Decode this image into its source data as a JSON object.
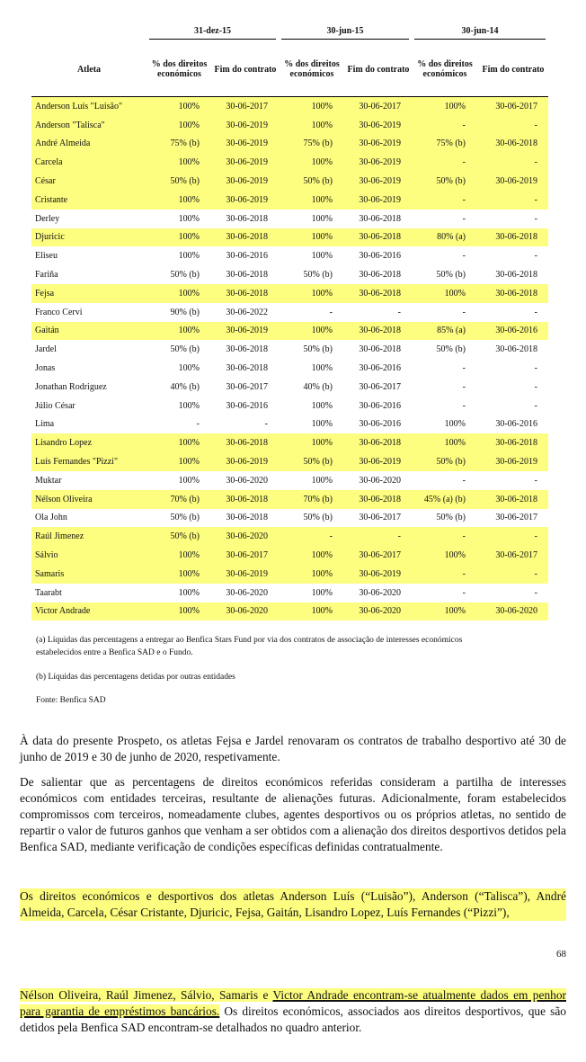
{
  "table": {
    "group_headers": [
      "31-dez-15",
      "30-jun-15",
      "30-jun-14"
    ],
    "athlete_header": "Atleta",
    "sub_headers": [
      "% dos direitos económicos",
      "Fim do contrato",
      "% dos direitos económicos",
      "Fim do contrato",
      "% dos direitos económicos",
      "Fim do contrato"
    ],
    "highlight_color": "#fdfd80",
    "rows": [
      {
        "cells": [
          "Anderson Luís \"Luisão\"",
          "100%",
          "30-06-2017",
          "100%",
          "30-06-2017",
          "100%",
          "30-06-2017"
        ],
        "highlighted": true
      },
      {
        "cells": [
          "Anderson \"Talisca\"",
          "100%",
          "30-06-2019",
          "100%",
          "30-06-2019",
          "-",
          "-"
        ],
        "highlighted": true
      },
      {
        "cells": [
          "André Almeida",
          "75% (b)",
          "30-06-2019",
          "75% (b)",
          "30-06-2019",
          "75% (b)",
          "30-06-2018"
        ],
        "highlighted": true
      },
      {
        "cells": [
          "Carcela",
          "100%",
          "30-06-2019",
          "100%",
          "30-06-2019",
          "-",
          "-"
        ],
        "highlighted": true
      },
      {
        "cells": [
          "César",
          "50% (b)",
          "30-06-2019",
          "50% (b)",
          "30-06-2019",
          "50% (b)",
          "30-06-2019"
        ],
        "highlighted": true
      },
      {
        "cells": [
          "Cristante",
          "100%",
          "30-06-2019",
          "100%",
          "30-06-2019",
          "-",
          "-"
        ],
        "highlighted": true
      },
      {
        "cells": [
          "Derley",
          "100%",
          "30-06-2018",
          "100%",
          "30-06-2018",
          "-",
          "-"
        ],
        "highlighted": false
      },
      {
        "cells": [
          "Djuricic",
          "100%",
          "30-06-2018",
          "100%",
          "30-06-2018",
          "80% (a)",
          "30-06-2018"
        ],
        "highlighted": true
      },
      {
        "cells": [
          "Eliseu",
          "100%",
          "30-06-2016",
          "100%",
          "30-06-2016",
          "-",
          "-"
        ],
        "highlighted": false
      },
      {
        "cells": [
          "Fariña",
          "50% (b)",
          "30-06-2018",
          "50% (b)",
          "30-06-2018",
          "50% (b)",
          "30-06-2018"
        ],
        "highlighted": false
      },
      {
        "cells": [
          "Fejsa",
          "100%",
          "30-06-2018",
          "100%",
          "30-06-2018",
          "100%",
          "30-06-2018"
        ],
        "highlighted": true
      },
      {
        "cells": [
          "Franco Cervi",
          "90% (b)",
          "30-06-2022",
          "-",
          "-",
          "-",
          "-"
        ],
        "highlighted": false
      },
      {
        "cells": [
          "Gaitán",
          "100%",
          "30-06-2019",
          "100%",
          "30-06-2018",
          "85% (a)",
          "30-06-2016"
        ],
        "highlighted": true
      },
      {
        "cells": [
          "Jardel",
          "50% (b)",
          "30-06-2018",
          "50% (b)",
          "30-06-2018",
          "50% (b)",
          "30-06-2018"
        ],
        "highlighted": false
      },
      {
        "cells": [
          "Jonas",
          "100%",
          "30-06-2018",
          "100%",
          "30-06-2016",
          "-",
          "-"
        ],
        "highlighted": false
      },
      {
        "cells": [
          "Jonathan Rodriguez",
          "40% (b)",
          "30-06-2017",
          "40% (b)",
          "30-06-2017",
          "-",
          "-"
        ],
        "highlighted": false
      },
      {
        "cells": [
          "Júlio César",
          "100%",
          "30-06-2016",
          "100%",
          "30-06-2016",
          "-",
          "-"
        ],
        "highlighted": false
      },
      {
        "cells": [
          "Lima",
          "-",
          "-",
          "100%",
          "30-06-2016",
          "100%",
          "30-06-2016"
        ],
        "highlighted": false
      },
      {
        "cells": [
          "Lisandro Lopez",
          "100%",
          "30-06-2018",
          "100%",
          "30-06-2018",
          "100%",
          "30-06-2018"
        ],
        "highlighted": true
      },
      {
        "cells": [
          "Luís Fernandes \"Pizzi\"",
          "100%",
          "30-06-2019",
          "50% (b)",
          "30-06-2019",
          "50% (b)",
          "30-06-2019"
        ],
        "highlighted": true
      },
      {
        "cells": [
          "Muktar",
          "100%",
          "30-06-2020",
          "100%",
          "30-06-2020",
          "-",
          "-"
        ],
        "highlighted": false
      },
      {
        "cells": [
          "Nélson Oliveira",
          "70% (b)",
          "30-06-2018",
          "70% (b)",
          "30-06-2018",
          "45% (a) (b)",
          "30-06-2018"
        ],
        "highlighted": true
      },
      {
        "cells": [
          "Ola John",
          "50% (b)",
          "30-06-2018",
          "50% (b)",
          "30-06-2017",
          "50% (b)",
          "30-06-2017"
        ],
        "highlighted": false
      },
      {
        "cells": [
          "Raúl Jimenez",
          "50% (b)",
          "30-06-2020",
          "-",
          "-",
          "-",
          "-"
        ],
        "highlighted": true
      },
      {
        "cells": [
          "Sálvio",
          "100%",
          "30-06-2017",
          "100%",
          "30-06-2017",
          "100%",
          "30-06-2017"
        ],
        "highlighted": true
      },
      {
        "cells": [
          "Samaris",
          "100%",
          "30-06-2019",
          "100%",
          "30-06-2019",
          "-",
          "-"
        ],
        "highlighted": true
      },
      {
        "cells": [
          "Taarabt",
          "100%",
          "30-06-2020",
          "100%",
          "30-06-2020",
          "-",
          "-"
        ],
        "highlighted": false
      },
      {
        "cells": [
          "Victor Andrade",
          "100%",
          "30-06-2020",
          "100%",
          "30-06-2020",
          "100%",
          "30-06-2020"
        ],
        "highlighted": true
      }
    ],
    "notes": [
      "(a) Líquidas das percentagens a entregar ao Benfica Stars Fund por via dos contratos de associação de interesses económicos estabelecidos entre a Benfica SAD e o Fundo.",
      "(b) Líquidas das percentagens detidas por outras entidades",
      "Fonte: Benfica SAD"
    ]
  },
  "paragraphs": [
    "À data do presente Prospeto, os atletas Fejsa e Jardel renovaram os contratos de trabalho desportivo até 30 de junho de 2019 e 30 de junho de 2020, respetivamente.",
    "De salientar que as percentagens de direitos económicos referidas consideram a partilha de interesses económicos com entidades terceiras, resultante de alienações futuras. Adicionalmente, foram estabelecidos compromissos com terceiros, nomeadamente clubes, agentes desportivos ou os próprios atletas, no sentido de repartir o valor de futuros ganhos que venham a ser obtidos com a alienação dos direitos desportivos detidos pela Benfica SAD, mediante verificação de condições específicas definidas contratualmente.",
    "Os direitos económicos e desportivos dos atletas Anderson Luís (“Luisão”), Anderson (“Talisca”), André Almeida, Carcela, César Cristante, Djuricic, Fejsa, Gaitán, Lisandro Lopez, Luís Fernandes (“Pizzi”),"
  ],
  "page_number": "68",
  "next_page": {
    "segments": [
      {
        "text": "Nélson Oliveira, Raúl Jimenez, Sálvio, Samaris e ",
        "highlighted": true,
        "underlined": false
      },
      {
        "text": "Victor Andrade encontram-se atualmente dados em penhor para garantia de empréstimos bancários.",
        "highlighted": true,
        "underlined": true
      },
      {
        "text": " Os direitos económicos, associados aos direitos desportivos, que são detidos pela Benfica SAD encontram-se detalhados no quadro anterior.",
        "highlighted": false,
        "underlined": false
      }
    ]
  }
}
